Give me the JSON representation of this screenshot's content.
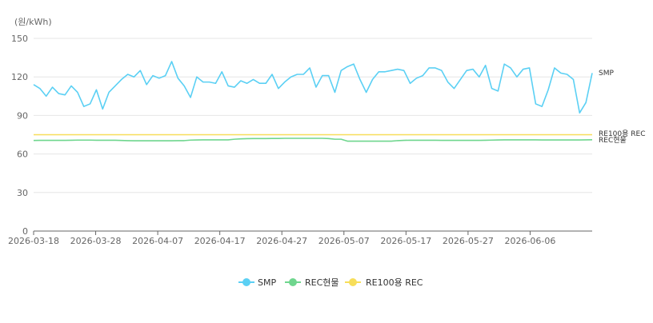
{
  "chart_data": {
    "type": "line",
    "unit_label": "(원/kWh)",
    "ylim": [
      0,
      150
    ],
    "y_ticks": [
      0,
      30,
      60,
      90,
      120,
      150
    ],
    "grid": true,
    "legend_position": "bottom",
    "x_start": "2026-03-18",
    "x_end": "2026-06-16",
    "x_ticks": [
      "2026-03-18",
      "2026-03-28",
      "2026-04-07",
      "2026-04-17",
      "2026-04-27",
      "2026-05-07",
      "2026-05-17",
      "2026-05-27",
      "2026-06-06"
    ],
    "series": [
      {
        "name": "SMP",
        "end_label": "SMP",
        "color": "#5bd0f4",
        "values": [
          114,
          111,
          105,
          112,
          107,
          106,
          113,
          108,
          97,
          99,
          110,
          95,
          108,
          113,
          118,
          122,
          120,
          125,
          114,
          121,
          119,
          121,
          132,
          119,
          113,
          104,
          120,
          116,
          116,
          115,
          124,
          113,
          112,
          117,
          115,
          118,
          115,
          115,
          122,
          111,
          116,
          120,
          122,
          122,
          127,
          112,
          121,
          121,
          108,
          125,
          128,
          130,
          118,
          108,
          118,
          124,
          124,
          125,
          126,
          125,
          115,
          119,
          121,
          127,
          127,
          125,
          116,
          111,
          118,
          125,
          126,
          120,
          129,
          111,
          109,
          130,
          127,
          120,
          126,
          127,
          99,
          97,
          110,
          127,
          123,
          122,
          118,
          92,
          100,
          123
        ]
      },
      {
        "name": "REC현물",
        "end_label": "REC현물",
        "color": "#6fd68e",
        "values": [
          70.5,
          70.6,
          70.6,
          70.6,
          70.6,
          70.6,
          70.7,
          70.8,
          70.8,
          70.8,
          70.7,
          70.7,
          70.7,
          70.7,
          70.5,
          70.4,
          70.3,
          70.3,
          70.3,
          70.3,
          70.3,
          70.3,
          70.3,
          70.4,
          70.4,
          70.8,
          70.9,
          71.0,
          71.0,
          71.0,
          71.0,
          71.0,
          71.5,
          71.8,
          71.9,
          72.0,
          72.0,
          72.0,
          72.1,
          72.1,
          72.2,
          72.2,
          72.2,
          72.2,
          72.2,
          72.2,
          72.2,
          72.0,
          71.5,
          71.5,
          70.0,
          70.0,
          70.0,
          70.0,
          70.0,
          70.0,
          70.0,
          70.0,
          70.4,
          70.6,
          70.7,
          70.7,
          70.7,
          70.7,
          70.7,
          70.6,
          70.6,
          70.6,
          70.6,
          70.6,
          70.6,
          70.6,
          70.7,
          70.8,
          70.9,
          71.0,
          71.0,
          71.0,
          71.0,
          71.0,
          71.0,
          70.9,
          70.9,
          70.9,
          70.9,
          70.9,
          70.9,
          70.9,
          71.0,
          71.1
        ]
      },
      {
        "name": "RE100용 REC",
        "end_label": "RE100용 REC",
        "color": "#f7de5a",
        "values": [
          75,
          75,
          75,
          75,
          75,
          75,
          75,
          75,
          75,
          75,
          75,
          75,
          75,
          75,
          75,
          75,
          75,
          75,
          75,
          75,
          75,
          75,
          75,
          75,
          75,
          75,
          75,
          75,
          75,
          75,
          75,
          75,
          75,
          75,
          75,
          75,
          75,
          75,
          75,
          75,
          75,
          75,
          75,
          75,
          75,
          75,
          75,
          75,
          75,
          75,
          75,
          75,
          75,
          75,
          75,
          75,
          75,
          75,
          75,
          75,
          75,
          75,
          75,
          75,
          75,
          75,
          75,
          75,
          75,
          75,
          75,
          75,
          75,
          75,
          75,
          75,
          75,
          75,
          75,
          75,
          75,
          75,
          75,
          75,
          75,
          75,
          75,
          75,
          75,
          75
        ]
      }
    ]
  },
  "legend": {
    "items": [
      {
        "label": "SMP",
        "color": "#5bd0f4"
      },
      {
        "label": "REC현물",
        "color": "#6fd68e"
      },
      {
        "label": "RE100용 REC",
        "color": "#f7de5a"
      }
    ]
  }
}
